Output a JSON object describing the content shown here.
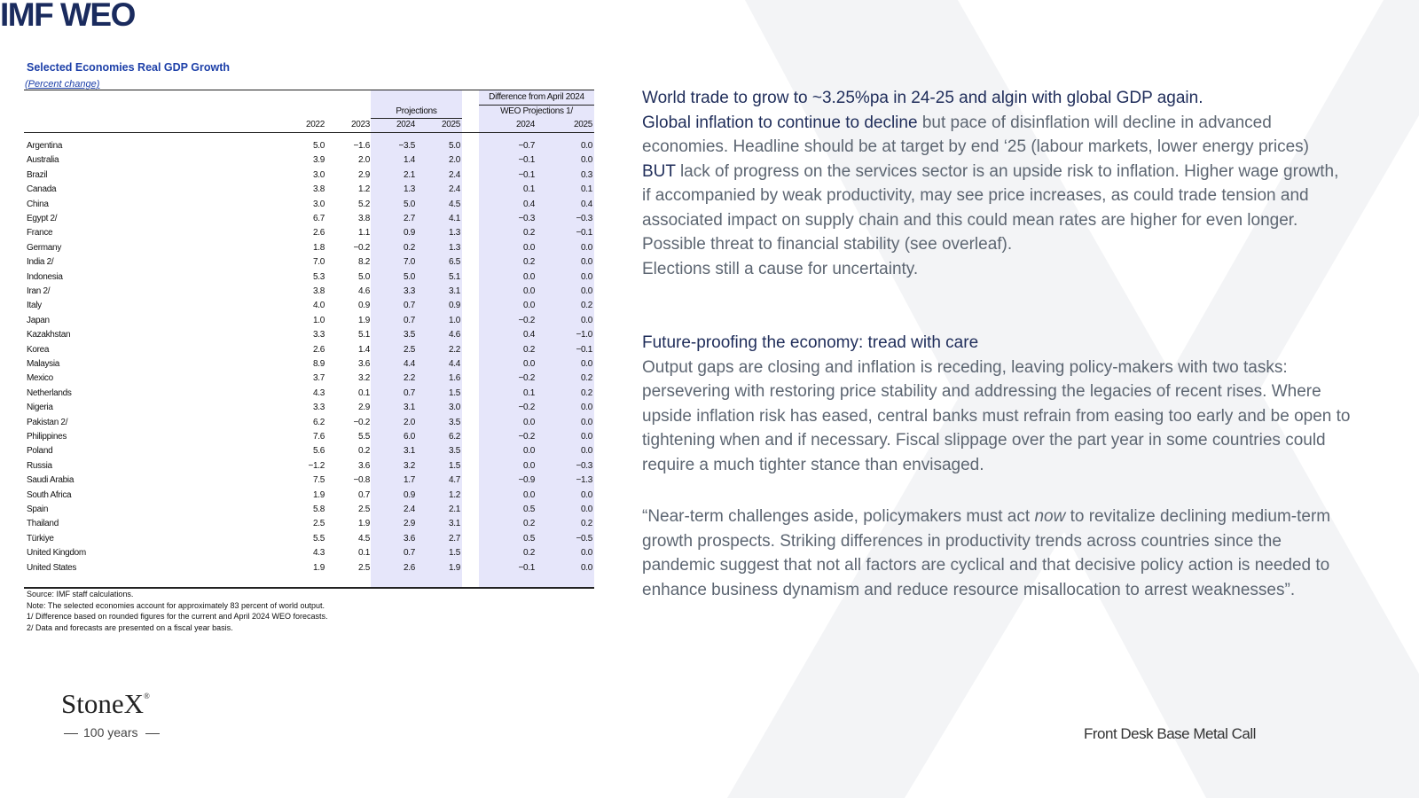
{
  "header": {
    "title": "IMF WEO"
  },
  "table": {
    "title": "Selected Economies Real GDP Growth",
    "subtitle": "(Percent change)",
    "projections_header": "Projections",
    "difference_header": [
      "Difference from April 2024",
      "WEO Projections 1/"
    ],
    "columns": [
      "2022",
      "2023",
      "2024",
      "2025",
      "2024",
      "2025"
    ],
    "rows": [
      [
        "Argentina",
        "5.0",
        "−1.6",
        "−3.5",
        "5.0",
        "−0.7",
        "0.0"
      ],
      [
        "Australia",
        "3.9",
        "2.0",
        "1.4",
        "2.0",
        "−0.1",
        "0.0"
      ],
      [
        "Brazil",
        "3.0",
        "2.9",
        "2.1",
        "2.4",
        "−0.1",
        "0.3"
      ],
      [
        "Canada",
        "3.8",
        "1.2",
        "1.3",
        "2.4",
        "0.1",
        "0.1"
      ],
      [
        "China",
        "3.0",
        "5.2",
        "5.0",
        "4.5",
        "0.4",
        "0.4"
      ],
      [
        "Egypt 2/",
        "6.7",
        "3.8",
        "2.7",
        "4.1",
        "−0.3",
        "−0.3"
      ],
      [
        "France",
        "2.6",
        "1.1",
        "0.9",
        "1.3",
        "0.2",
        "−0.1"
      ],
      [
        "Germany",
        "1.8",
        "−0.2",
        "0.2",
        "1.3",
        "0.0",
        "0.0"
      ],
      [
        "India 2/",
        "7.0",
        "8.2",
        "7.0",
        "6.5",
        "0.2",
        "0.0"
      ],
      [
        "Indonesia",
        "5.3",
        "5.0",
        "5.0",
        "5.1",
        "0.0",
        "0.0"
      ],
      [
        "Iran 2/",
        "3.8",
        "4.6",
        "3.3",
        "3.1",
        "0.0",
        "0.0"
      ],
      [
        "Italy",
        "4.0",
        "0.9",
        "0.7",
        "0.9",
        "0.0",
        "0.2"
      ],
      [
        "Japan",
        "1.0",
        "1.9",
        "0.7",
        "1.0",
        "−0.2",
        "0.0"
      ],
      [
        "Kazakhstan",
        "3.3",
        "5.1",
        "3.5",
        "4.6",
        "0.4",
        "−1.0"
      ],
      [
        "Korea",
        "2.6",
        "1.4",
        "2.5",
        "2.2",
        "0.2",
        "−0.1"
      ],
      [
        "Malaysia",
        "8.9",
        "3.6",
        "4.4",
        "4.4",
        "0.0",
        "0.0"
      ],
      [
        "Mexico",
        "3.7",
        "3.2",
        "2.2",
        "1.6",
        "−0.2",
        "0.2"
      ],
      [
        "Netherlands",
        "4.3",
        "0.1",
        "0.7",
        "1.5",
        "0.1",
        "0.2"
      ],
      [
        "Nigeria",
        "3.3",
        "2.9",
        "3.1",
        "3.0",
        "−0.2",
        "0.0"
      ],
      [
        "Pakistan 2/",
        "6.2",
        "−0.2",
        "2.0",
        "3.5",
        "0.0",
        "0.0"
      ],
      [
        "Philippines",
        "7.6",
        "5.5",
        "6.0",
        "6.2",
        "−0.2",
        "0.0"
      ],
      [
        "Poland",
        "5.6",
        "0.2",
        "3.1",
        "3.5",
        "0.0",
        "0.0"
      ],
      [
        "Russia",
        "−1.2",
        "3.6",
        "3.2",
        "1.5",
        "0.0",
        "−0.3"
      ],
      [
        "Saudi Arabia",
        "7.5",
        "−0.8",
        "1.7",
        "4.7",
        "−0.9",
        "−1.3"
      ],
      [
        "South Africa",
        "1.9",
        "0.7",
        "0.9",
        "1.2",
        "0.0",
        "0.0"
      ],
      [
        "Spain",
        "5.8",
        "2.5",
        "2.4",
        "2.1",
        "0.5",
        "0.0"
      ],
      [
        "Thailand",
        "2.5",
        "1.9",
        "2.9",
        "3.1",
        "0.2",
        "0.2"
      ],
      [
        "Türkiye",
        "5.5",
        "4.5",
        "3.6",
        "2.7",
        "0.5",
        "−0.5"
      ],
      [
        "United Kingdom",
        "4.3",
        "0.1",
        "0.7",
        "1.5",
        "0.2",
        "0.0"
      ],
      [
        "United States",
        "1.9",
        "2.5",
        "2.6",
        "1.9",
        "−0.1",
        "0.0"
      ]
    ],
    "notes": [
      "Source: IMF staff calculations.",
      "Note: The selected economies account for approximately 83 percent of world output.",
      "1/ Difference based on rounded figures for the current and April 2024 WEO forecasts.",
      "2/ Data and forecasts are presented on a fiscal year basis."
    ]
  },
  "text": {
    "sections": [
      [
        [
          {
            "text": "World trade to grow to ~3.25%pa in 24-25 and algin with global GDP again.",
            "emphasis": true
          }
        ],
        [
          {
            "text": "Global inflation to continue to decline",
            "emphasis": true
          },
          {
            "text": " but pace of disinflation will decline in advanced economies. Headline should be at target by end ‘25 (labour markets, lower energy prices)"
          }
        ],
        [
          {
            "text": "BUT",
            "emphasis": true
          },
          {
            "text": " lack of progress on the services sector is an upside risk to inflation.  Higher wage growth, if accompanied by weak productivity, may see price increases, as could trade tension and associated impact on supply chain and this could mean rates are higher for even longer.  Possible threat to financial stability (see overleaf)."
          }
        ],
        [
          {
            "text": "Elections still a cause for uncertainty."
          }
        ]
      ],
      [
        [
          {
            "text": "Future-proofing the economy: tread with care",
            "emphasis": true
          }
        ],
        [
          {
            "text": "Output gaps are closing and inflation is receding, leaving policy-makers with two tasks: persevering with restoring price stability and addressing the legacies of recent rises. Where upside inflation risk has eased, central banks must refrain from easing too early and be open to tightening when and if necessary.  Fiscal slippage over the part year in some countries could require a much tighter stance than envisaged."
          }
        ]
      ],
      [
        [
          {
            "text": "“Near-term challenges aside, policymakers must act "
          },
          {
            "text": "now",
            "italic": true
          },
          {
            "text": " to revitalize declining medium-term growth prospects. Striking differences in productivity trends across countries since the pandemic suggest that not all factors are cyclical and that decisive policy action is needed to enhance business dynamism and reduce resource misallocation to arrest weaknesses”."
          }
        ]
      ]
    ]
  },
  "footer": {
    "logo": "StoneX",
    "logo_mark": "®",
    "logo_sub": "100 years",
    "label": "Front Desk Base Metal Call"
  }
}
